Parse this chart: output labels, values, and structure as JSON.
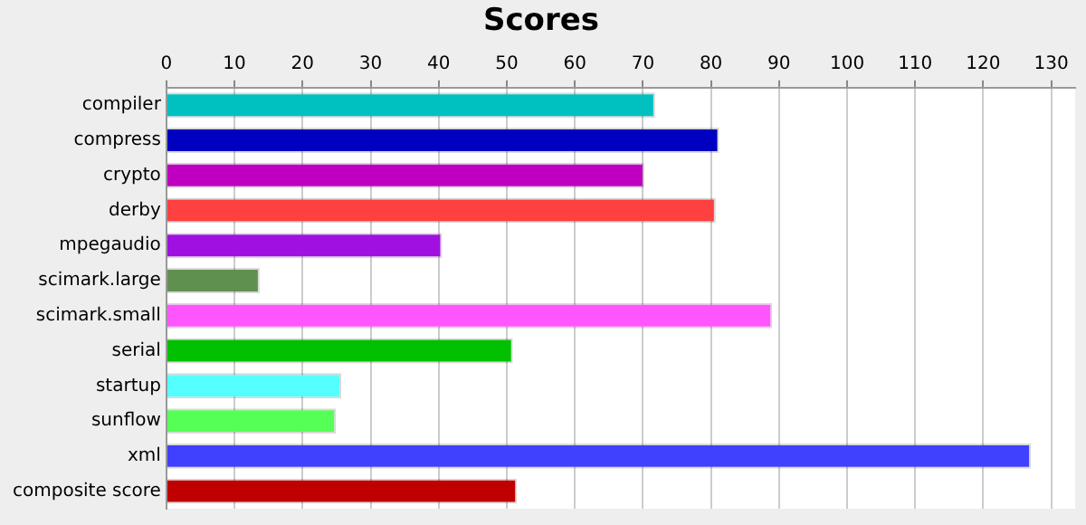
{
  "chart_data": {
    "type": "bar",
    "orientation": "horizontal",
    "title": "Scores",
    "categories": [
      "compiler",
      "compress",
      "crypto",
      "derby",
      "mpegaudio",
      "scimark.large",
      "scimark.small",
      "serial",
      "startup",
      "sunflow",
      "xml",
      "composite score"
    ],
    "values": [
      71.8,
      81.2,
      70.2,
      80.7,
      40.5,
      13.7,
      89,
      50.9,
      25.7,
      24.9,
      127,
      51.5
    ],
    "colors": [
      "#00c0c0",
      "#0000c0",
      "#c000c0",
      "#ff4040",
      "#a010e0",
      "#609050",
      "#ff55ff",
      "#00c000",
      "#55ffff",
      "#55ff55",
      "#4040ff",
      "#c00000"
    ],
    "xlim": [
      0,
      133.5
    ],
    "xticks": [
      0,
      10,
      20,
      30,
      40,
      50,
      60,
      70,
      80,
      90,
      100,
      110,
      120,
      130
    ],
    "grid": "x"
  }
}
